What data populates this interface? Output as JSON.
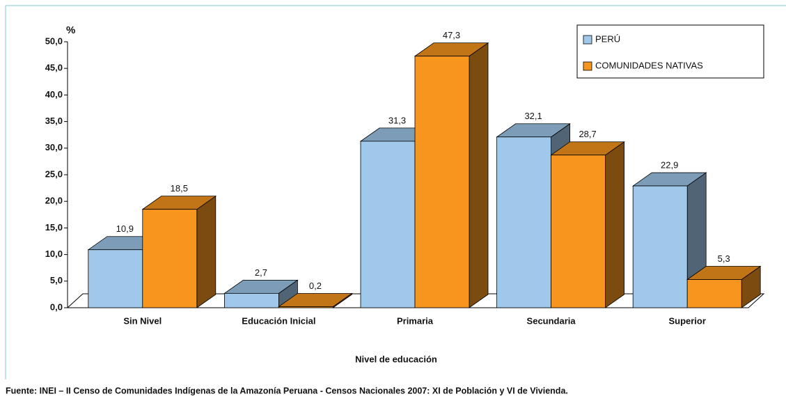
{
  "chart_data": {
    "type": "bar3d",
    "y_unit_label": "%",
    "x_axis_label": "Nivel de educación",
    "source": "Fuente: INEI – II Censo de Comunidades Indígenas de la Amazonía Peruana - Censos Nacionales 2007: XI de Población y VI de Vivienda.",
    "categories": [
      "Sin Nivel",
      "Educación Inicial",
      "Primaria",
      "Secundaria",
      "Superior"
    ],
    "series": [
      {
        "name": "PERÚ",
        "color": "#9fc8ea",
        "values": [
          10.9,
          2.7,
          31.3,
          32.1,
          22.9
        ],
        "value_labels": [
          "10,9",
          "2,7",
          "31,3",
          "32,1",
          "22,9"
        ]
      },
      {
        "name": "COMUNIDADES NATIVAS",
        "color": "#f7961e",
        "values": [
          18.5,
          0.2,
          47.3,
          28.7,
          5.3
        ],
        "value_labels": [
          "18,5",
          "0,2",
          "47,3",
          "28,7",
          "5,3"
        ]
      }
    ],
    "ylim": [
      0,
      50
    ],
    "yticks": [
      {
        "value": 0,
        "label": "0,0"
      },
      {
        "value": 5,
        "label": "5,0"
      },
      {
        "value": 10,
        "label": "10,0"
      },
      {
        "value": 15,
        "label": "15,0"
      },
      {
        "value": 20,
        "label": "20,0"
      },
      {
        "value": 25,
        "label": "25,0"
      },
      {
        "value": 30,
        "label": "30,0"
      },
      {
        "value": 35,
        "label": "35,0"
      },
      {
        "value": 40,
        "label": "40,0"
      },
      {
        "value": 45,
        "label": "45,0"
      },
      {
        "value": 50,
        "label": "50,0"
      }
    ],
    "legend": "top-right"
  }
}
